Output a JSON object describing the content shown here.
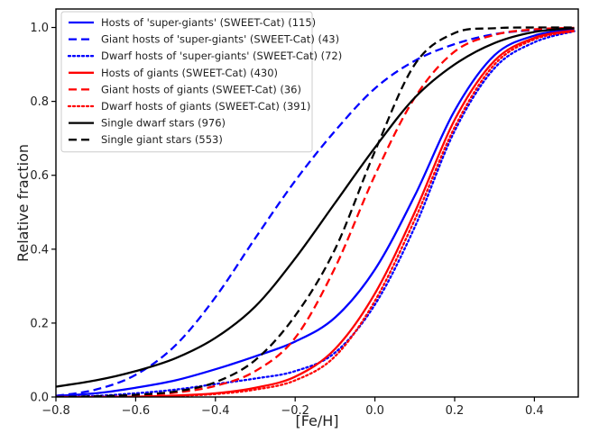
{
  "chart_data": {
    "type": "line",
    "title": "",
    "xlabel": "[Fe/H]",
    "ylabel": "Relative fraction",
    "xlim": [
      -0.8,
      0.51
    ],
    "ylim": [
      0.0,
      1.05
    ],
    "xticks": [
      -0.8,
      -0.6,
      -0.4,
      -0.2,
      0.0,
      0.2,
      0.4
    ],
    "xtick_labels": [
      "−0.8",
      "−0.6",
      "−0.4",
      "−0.2",
      "0.0",
      "0.2",
      "0.4"
    ],
    "yticks": [
      0.0,
      0.2,
      0.4,
      0.6,
      0.8,
      1.0
    ],
    "ytick_labels": [
      "0.0",
      "0.2",
      "0.4",
      "0.6",
      "0.8",
      "1.0"
    ],
    "grid": false,
    "legend_position": "top-left",
    "x": [
      -0.8,
      -0.7,
      -0.6,
      -0.5,
      -0.4,
      -0.3,
      -0.2,
      -0.1,
      0.0,
      0.1,
      0.2,
      0.3,
      0.4,
      0.5
    ],
    "series": [
      {
        "name": "Hosts of 'super-giants' (SWEET-Cat) (115)",
        "color": "#0000ff",
        "dash": "solid",
        "values": [
          0.003,
          0.01,
          0.025,
          0.045,
          0.075,
          0.11,
          0.15,
          0.215,
          0.345,
          0.545,
          0.775,
          0.925,
          0.978,
          0.995
        ]
      },
      {
        "name": "Giant hosts of 'super-giants' (SWEET-Cat) (43)",
        "color": "#0000ff",
        "dash": "dashed",
        "values": [
          0.003,
          0.02,
          0.06,
          0.14,
          0.27,
          0.43,
          0.585,
          0.72,
          0.835,
          0.91,
          0.955,
          0.982,
          0.993,
          0.998
        ]
      },
      {
        "name": "Dwarf hosts of 'super-giants' (SWEET-Cat) (72)",
        "color": "#0000ff",
        "dash": "dotted",
        "values": [
          0.0,
          0.003,
          0.01,
          0.02,
          0.035,
          0.05,
          0.07,
          0.12,
          0.25,
          0.46,
          0.72,
          0.89,
          0.96,
          0.99
        ]
      },
      {
        "name": "Hosts of giants (SWEET-Cat) (430)",
        "color": "#ff0000",
        "dash": "solid",
        "values": [
          0.0,
          0.0,
          0.001,
          0.004,
          0.01,
          0.025,
          0.055,
          0.13,
          0.28,
          0.5,
          0.75,
          0.91,
          0.972,
          0.992
        ]
      },
      {
        "name": "Giant hosts of giants (SWEET-Cat) (36)",
        "color": "#ff0000",
        "dash": "dashed",
        "values": [
          0.0,
          0.001,
          0.004,
          0.012,
          0.03,
          0.07,
          0.16,
          0.35,
          0.6,
          0.81,
          0.935,
          0.98,
          0.995,
          0.999
        ]
      },
      {
        "name": "Dwarf hosts of giants (SWEET-Cat) (391)",
        "color": "#ff0000",
        "dash": "dotted",
        "values": [
          0.0,
          0.0,
          0.001,
          0.003,
          0.008,
          0.02,
          0.045,
          0.11,
          0.26,
          0.48,
          0.73,
          0.9,
          0.968,
          0.99
        ]
      },
      {
        "name": "Single dwarf stars (976)",
        "color": "#000000",
        "dash": "solid",
        "values": [
          0.028,
          0.045,
          0.07,
          0.105,
          0.16,
          0.245,
          0.375,
          0.525,
          0.675,
          0.81,
          0.9,
          0.958,
          0.988,
          0.998
        ]
      },
      {
        "name": "Single giant stars (553)",
        "color": "#000000",
        "dash": "dashed",
        "values": [
          0.0,
          0.002,
          0.006,
          0.015,
          0.04,
          0.1,
          0.22,
          0.4,
          0.665,
          0.9,
          0.985,
          0.998,
          1.0,
          1.0
        ]
      }
    ]
  }
}
